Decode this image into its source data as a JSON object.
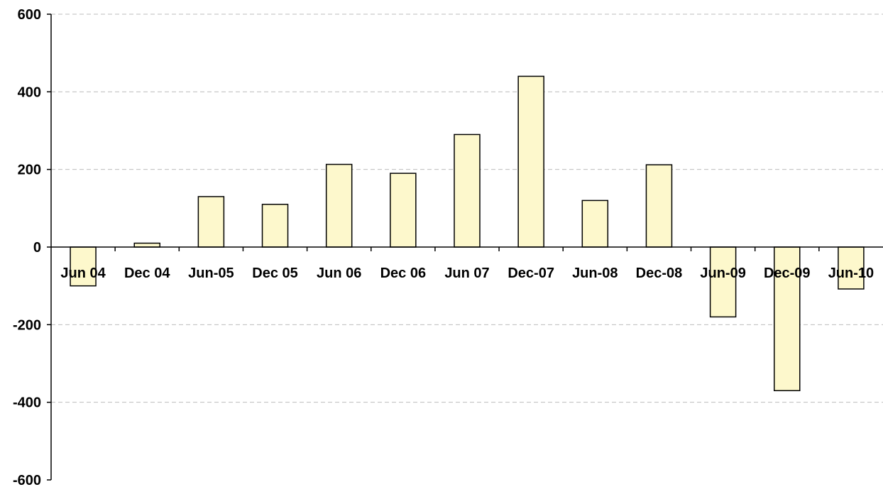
{
  "chart_data": {
    "type": "bar",
    "title": "",
    "xlabel": "",
    "ylabel": "",
    "categories": [
      "Jun 04",
      "Dec 04",
      "Jun-05",
      "Dec 05",
      "Jun 06",
      "Dec 06",
      "Jun 07",
      "Dec-07",
      "Jun-08",
      "Dec-08",
      "Jun-09",
      "Dec-09",
      "Jun-10"
    ],
    "values": [
      -100,
      10,
      130,
      110,
      213,
      190,
      290,
      440,
      120,
      212,
      -180,
      -370,
      -108
    ],
    "ylim": [
      -600,
      600
    ],
    "yticks": [
      -600,
      -400,
      -200,
      0,
      200,
      400,
      600
    ],
    "ytick_labels": [
      "-600",
      "-400",
      "-200",
      "0",
      "200",
      "400",
      "600"
    ],
    "grid": true,
    "legend": "none",
    "colors": {
      "bar_fill": "#fdf8cc",
      "bar_stroke": "#000000",
      "grid": "#bdbdbd"
    }
  }
}
